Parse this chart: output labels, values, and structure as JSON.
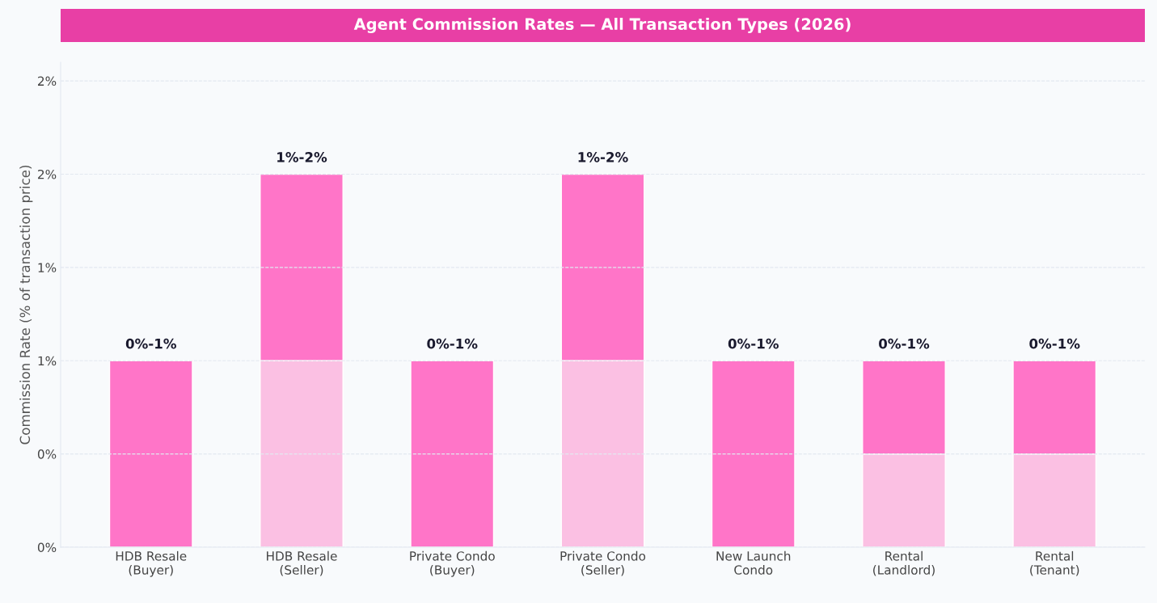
{
  "chart_data": {
    "type": "bar",
    "title": "Agent Commission Rates — All Transaction Types (2026)",
    "ylabel": "Commission Rate (% of transaction price)",
    "categories": [
      "HDB Resale\n(Buyer)",
      "HDB Resale\n(Seller)",
      "Private Condo\n(Buyer)",
      "Private Condo\n(Seller)",
      "New Launch\nCondo",
      "Rental\n(Landlord)",
      "Rental\n(Tenant)"
    ],
    "stacked": true,
    "series": [
      {
        "color": "#fbc0e3",
        "values": [
          0,
          1,
          0,
          1,
          0,
          0.5,
          0.5
        ]
      },
      {
        "color": "#ff75c8",
        "values": [
          1,
          1,
          1,
          1,
          1,
          0.5,
          0.5
        ]
      }
    ],
    "value_labels": [
      "0%-1%",
      "1%-2%",
      "0%-1%",
      "1%-2%",
      "0%-1%",
      "0%-1%",
      "0%-1%"
    ],
    "ylim": [
      0,
      2.6
    ],
    "yticks": [
      {
        "value": 0,
        "label": "0%"
      },
      {
        "value": 0.5,
        "label": "0%"
      },
      {
        "value": 1,
        "label": "1%"
      },
      {
        "value": 1.5,
        "label": "1%"
      },
      {
        "value": 2,
        "label": "2%"
      },
      {
        "value": 2.5,
        "label": "2%"
      }
    ],
    "grid": "y",
    "legend": false
  }
}
